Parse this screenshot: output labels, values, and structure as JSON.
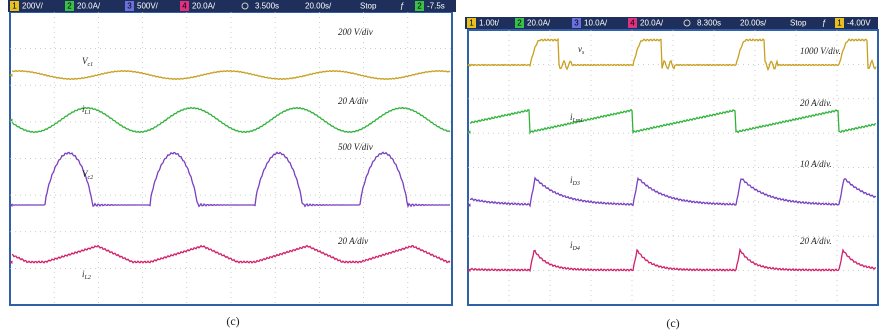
{
  "figure": {
    "panels": [
      {
        "status_bar": [
          {
            "channel": "1",
            "value": "200V/"
          },
          {
            "channel": "2",
            "value": "20.0A/"
          },
          {
            "channel": "3",
            "value": "500V/"
          },
          {
            "channel": "4",
            "value": "20.0A/"
          },
          {
            "value": "3.500s"
          },
          {
            "value": "20.00s/"
          },
          {
            "value": "Stop"
          },
          {
            "value": "ƒ"
          },
          {
            "channel": "2",
            "value": "-7.5s"
          }
        ],
        "traces": [
          {
            "label": {
              "main": "V",
              "sub": "c1"
            },
            "scale": "200 V/div"
          },
          {
            "label": {
              "main": "i",
              "sub": "L1"
            },
            "scale": "20 A/div"
          },
          {
            "label": {
              "main": "V",
              "sub": "c2"
            },
            "scale": "500 V/div"
          },
          {
            "label": {
              "main": "i",
              "sub": "L2"
            },
            "scale": "20 A/div"
          }
        ],
        "caption": "(c)"
      },
      {
        "status_bar": [
          {
            "channel": "1",
            "value": "1.00t/"
          },
          {
            "channel": "2",
            "value": "20.0A/"
          },
          {
            "channel": "3",
            "value": "10.0A/"
          },
          {
            "channel": "4",
            "value": "20.0A/"
          },
          {
            "value": "8.300s"
          },
          {
            "value": "20.00s/"
          },
          {
            "value": "Stop"
          },
          {
            "value": "ƒ"
          },
          {
            "channel": "1",
            "value": "-4.00V"
          }
        ],
        "traces": [
          {
            "label": {
              "main": "v",
              "sub": "s"
            },
            "scale": "1000 V/div."
          },
          {
            "label": {
              "main": "i",
              "sub": "Lm1"
            },
            "scale": "20 A/div."
          },
          {
            "label": {
              "main": "i",
              "sub": "D3"
            },
            "scale": "10 A/div."
          },
          {
            "label": {
              "main": "i",
              "sub": "D4"
            },
            "scale": "20 A/div."
          }
        ],
        "caption": "(c)"
      }
    ]
  }
}
